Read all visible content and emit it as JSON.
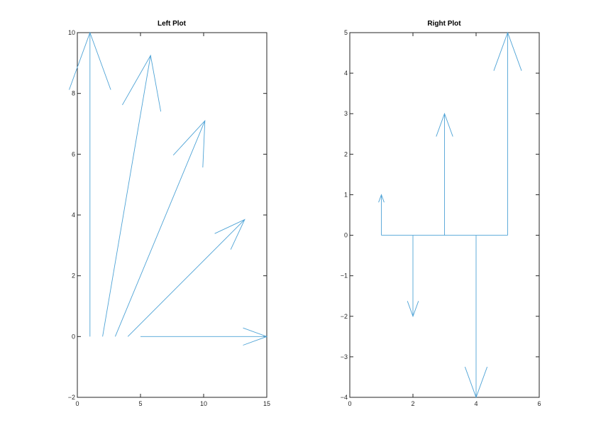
{
  "chart_data": [
    {
      "type": "quiver",
      "title": "Left Plot",
      "xlabel": "",
      "ylabel": "",
      "xlim": [
        0,
        15
      ],
      "ylim": [
        -2,
        10
      ],
      "xticks": [
        0,
        5,
        10,
        15
      ],
      "yticks": [
        -2,
        0,
        2,
        4,
        6,
        8,
        10
      ],
      "grid": false,
      "color": "#4ea3d6",
      "arrows": [
        {
          "x": 1,
          "y": 0,
          "u": 0,
          "v": 10
        },
        {
          "x": 2,
          "y": 0,
          "u": 3.8,
          "v": 9.25
        },
        {
          "x": 3,
          "y": 0,
          "u": 7.1,
          "v": 7.1
        },
        {
          "x": 4,
          "y": 0,
          "u": 9.25,
          "v": 3.85
        },
        {
          "x": 5,
          "y": 0,
          "u": 10,
          "v": 0
        }
      ]
    },
    {
      "type": "quiver",
      "title": "Right Plot",
      "xlabel": "",
      "ylabel": "",
      "xlim": [
        0,
        6
      ],
      "ylim": [
        -4,
        5
      ],
      "xticks": [
        0,
        2,
        4,
        6
      ],
      "yticks": [
        -4,
        -3,
        -2,
        -1,
        0,
        1,
        2,
        3,
        4,
        5
      ],
      "grid": false,
      "color": "#4ea3d6",
      "arrows": [
        {
          "x": 1,
          "y": 0,
          "u": 0,
          "v": 1
        },
        {
          "x": 2,
          "y": 0,
          "u": 0,
          "v": -2
        },
        {
          "x": 3,
          "y": 0,
          "u": 0,
          "v": 3
        },
        {
          "x": 4,
          "y": 0,
          "u": 0,
          "v": -4
        },
        {
          "x": 5,
          "y": 0,
          "u": 0,
          "v": 5
        }
      ],
      "baseline": {
        "from": 1,
        "to": 5,
        "y": 0
      }
    }
  ]
}
